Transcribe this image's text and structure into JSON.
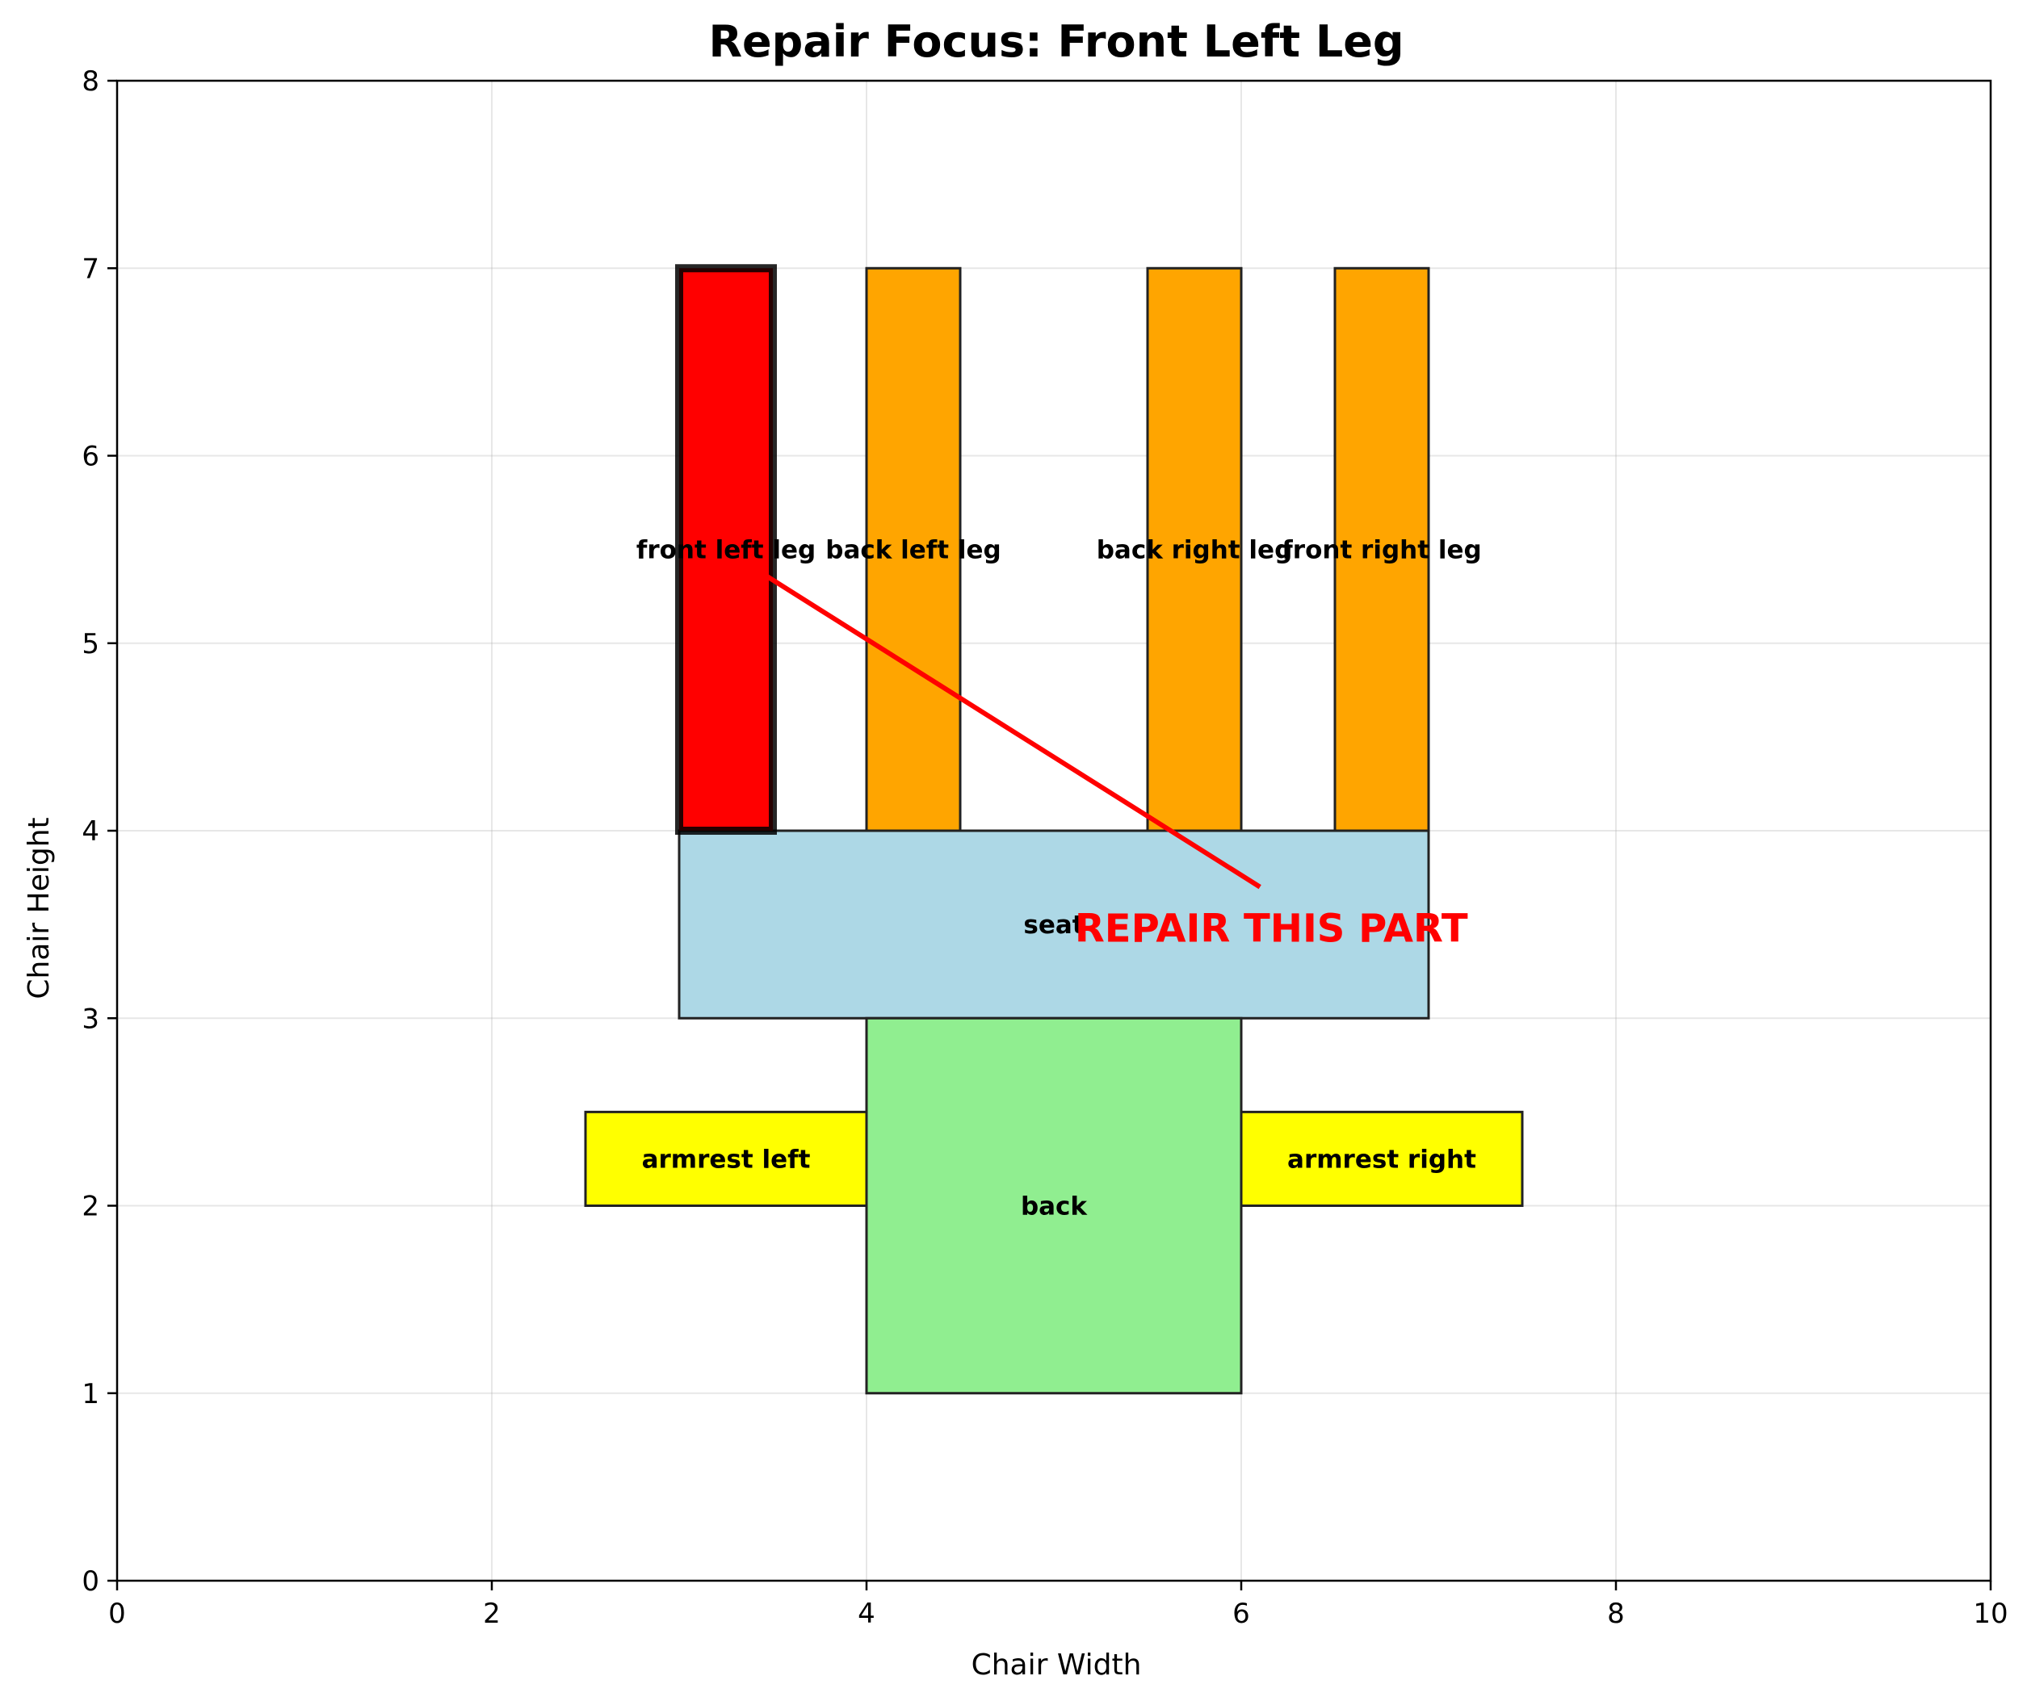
{
  "chart_data": {
    "type": "diagram-bar",
    "title": "Repair Focus: Front Left Leg",
    "xlabel": "Chair Width",
    "ylabel": "Chair Height",
    "xlim": [
      0,
      10
    ],
    "ylim": [
      0,
      8
    ],
    "xticks": [
      "0",
      "2",
      "4",
      "6",
      "8",
      "10"
    ],
    "yticks": [
      "0",
      "1",
      "2",
      "3",
      "4",
      "5",
      "6",
      "7",
      "8"
    ],
    "grid": true,
    "parts": [
      {
        "name": "front left leg",
        "x": 3.0,
        "y": 4.0,
        "width": 0.5,
        "height": 3.0,
        "color": "#ff0000",
        "highlighted": true
      },
      {
        "name": "back left leg",
        "x": 4.0,
        "y": 4.0,
        "width": 0.5,
        "height": 3.0,
        "color": "#ffa500",
        "highlighted": false
      },
      {
        "name": "back right leg",
        "x": 5.5,
        "y": 4.0,
        "width": 0.5,
        "height": 3.0,
        "color": "#ffa500",
        "highlighted": false
      },
      {
        "name": "front right leg",
        "x": 6.5,
        "y": 4.0,
        "width": 0.5,
        "height": 3.0,
        "color": "#ffa500",
        "highlighted": false
      },
      {
        "name": "seat",
        "x": 3.0,
        "y": 3.0,
        "width": 4.0,
        "height": 1.0,
        "color": "#add8e6",
        "highlighted": false
      },
      {
        "name": "back",
        "x": 4.0,
        "y": 1.0,
        "width": 2.0,
        "height": 2.0,
        "color": "#90ee90",
        "highlighted": false
      },
      {
        "name": "armrest left",
        "x": 2.5,
        "y": 2.0,
        "width": 1.5,
        "height": 0.5,
        "color": "#ffff00",
        "highlighted": false
      },
      {
        "name": "armrest right",
        "x": 6.0,
        "y": 2.0,
        "width": 1.5,
        "height": 0.5,
        "color": "#ffff00",
        "highlighted": false
      }
    ],
    "annotation": {
      "text": "REPAIR THIS PART",
      "color": "#ff0000",
      "point": [
        3.4,
        5.4
      ],
      "text_position": [
        6.1,
        3.7
      ]
    }
  }
}
